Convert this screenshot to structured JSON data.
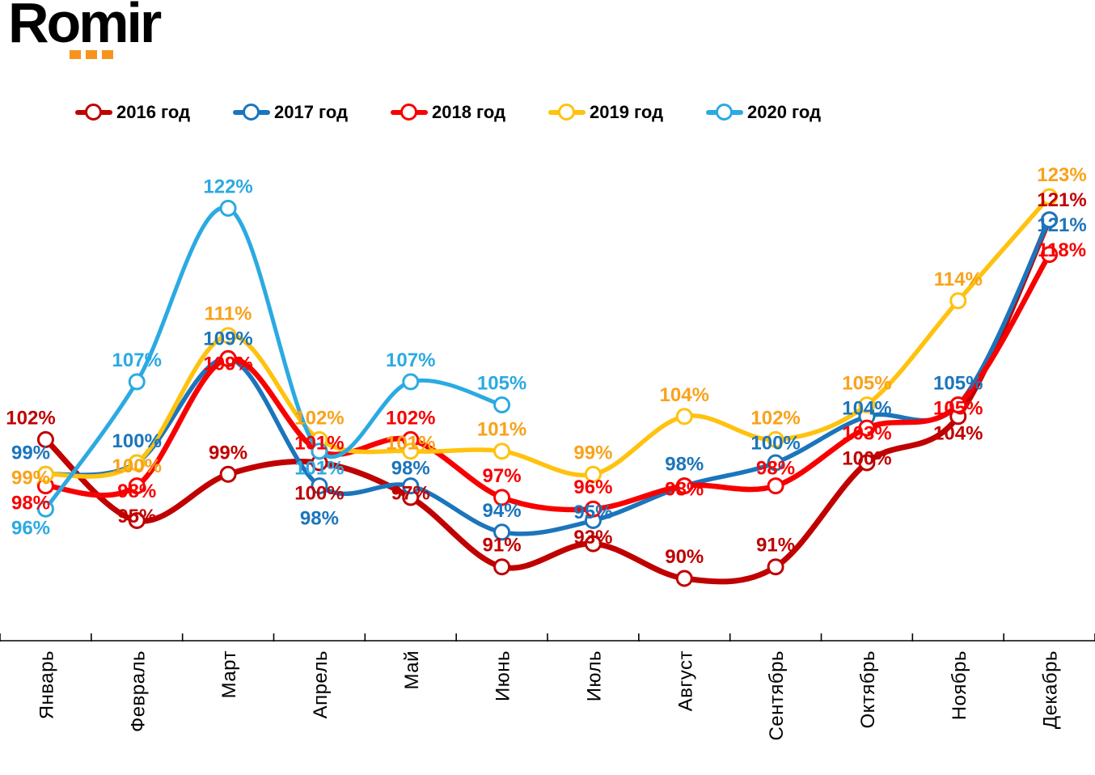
{
  "logo": {
    "text": "Romir",
    "dots_color": "#F7941E"
  },
  "chart_data": {
    "type": "line",
    "title": "",
    "unit": "%",
    "categories": [
      "Январь",
      "Февраль",
      "Март",
      "Апрель",
      "Май",
      "Июнь",
      "Июль",
      "Август",
      "Сентябрь",
      "Октябрь",
      "Ноябрь",
      "Декабрь"
    ],
    "series": [
      {
        "name": "2016 год",
        "color": "#C00000",
        "line_width": 7,
        "values": [
          102,
          95,
          99,
          100,
          97,
          91,
          93,
          90,
          91,
          100,
          104,
          121
        ]
      },
      {
        "name": "2017 год",
        "color": "#1B75BC",
        "line_width": 5.5,
        "values": [
          99,
          100,
          109,
          98,
          98,
          94,
          95,
          98,
          100,
          104,
          105,
          121
        ]
      },
      {
        "name": "2018 год",
        "color": "#F80000",
        "line_width": 6.5,
        "values": [
          98,
          98,
          109,
          101,
          102,
          97,
          96,
          98,
          98,
          103,
          105,
          118
        ]
      },
      {
        "name": "2019 год",
        "color": "#FFC20E",
        "label_color": "#F9A21B",
        "line_width": 5.5,
        "values": [
          99,
          100,
          111,
          102,
          101,
          101,
          99,
          104,
          102,
          105,
          114,
          123
        ]
      },
      {
        "name": "2020 год",
        "color": "#2BAAE2",
        "line_width": 5,
        "values": [
          96,
          107,
          122,
          101,
          107,
          105,
          null,
          null,
          null,
          null,
          null,
          null
        ]
      }
    ],
    "ylim": [
      88,
      126
    ],
    "grid": false,
    "y_axis_visible": false,
    "legend_position": "top",
    "marker": "open-circle"
  }
}
